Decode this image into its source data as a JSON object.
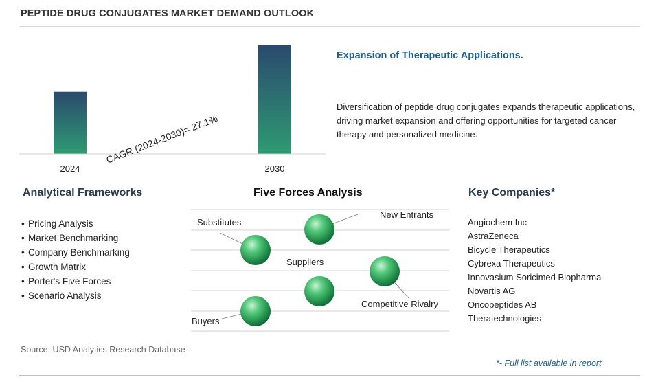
{
  "title": "PEPTIDE DRUG CONJUGATES MARKET DEMAND OUTLOOK",
  "chart_data": {
    "type": "bar",
    "categories": [
      "2024",
      "2030"
    ],
    "values": [
      1,
      1.75
    ],
    "cagr_label": "CAGR (2024-2030)=  27.1%"
  },
  "headline": "Expansion of Therapeutic Applications.",
  "description": "Diversification of peptide drug conjugates expands therapeutic applications, driving market expansion and offering opportunities for targeted cancer therapy and personalized medicine.",
  "frameworks": {
    "heading": "Analytical Frameworks",
    "items": [
      "Pricing Analysis",
      "Market Benchmarking",
      "Company Benchmarking",
      "Growth Matrix",
      "Porter's Five Forces",
      "Scenario Analysis"
    ]
  },
  "forces": {
    "heading": "Five Forces Analysis",
    "labels": {
      "substitutes": "Substitutes",
      "new_entrants": "New Entrants",
      "suppliers": "Suppliers",
      "competitive_rivalry": "Competitive Rivalry",
      "buyers": "Buyers"
    }
  },
  "companies": {
    "heading": "Key Companies*",
    "items": [
      "Angiochem Inc",
      "AstraZeneca",
      "Bicycle Therapeutics",
      "Cybrexa Therapeutics",
      "Innovasium Soricimed Biopharma",
      "Novartis AG",
      "Oncopeptides AB",
      "Theratechnologies"
    ]
  },
  "source": "Source: USD Analytics Research Database",
  "footnote": "*- Full list available in report",
  "colors": {
    "bar_top": "#2a4a6e",
    "bar_bottom": "#2f9a72",
    "headline": "#1f5f99",
    "sphere": "#3dbb6a"
  }
}
